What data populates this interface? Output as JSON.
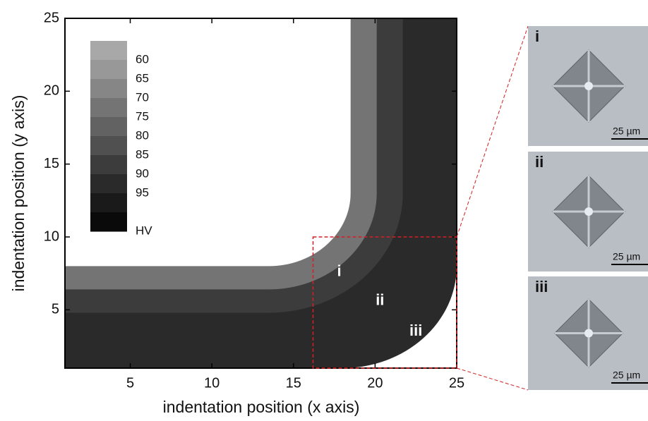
{
  "chart_data": {
    "type": "contour",
    "xlabel": "indentation position (x axis)",
    "ylabel": "indentation position (y axis)",
    "xlim": [
      1,
      25
    ],
    "ylim": [
      1,
      25
    ],
    "xticks": [
      5,
      10,
      15,
      20,
      25
    ],
    "yticks": [
      5,
      10,
      15,
      20,
      25
    ],
    "regions": [
      92,
      85,
      72
    ],
    "colorbar": {
      "lim": [
        55,
        105
      ],
      "ticks": [
        60,
        65,
        70,
        75,
        80,
        85,
        90,
        95
      ],
      "unit": "HV",
      "colors": [
        "#a8a8a8",
        "#989898",
        "#868686",
        "#747474",
        "#626262",
        "#505050",
        "#3c3c3c",
        "#2a2a2a",
        "#1a1a1a",
        "#0a0a0a"
      ]
    },
    "annotations": [
      {
        "text": "i",
        "x": 17.8,
        "y": 7.6
      },
      {
        "text": "ii",
        "x": 20.3,
        "y": 5.6
      },
      {
        "text": "iii",
        "x": 22.5,
        "y": 3.5
      }
    ],
    "zoom_box": {
      "xlim": [
        16.2,
        25
      ],
      "ylim": [
        1,
        10
      ],
      "color": "#d42020"
    },
    "micrographs": [
      {
        "label": "i",
        "scale": "25 µm"
      },
      {
        "label": "ii",
        "scale": "25 µm"
      },
      {
        "label": "iii",
        "scale": "25 µm"
      }
    ]
  }
}
